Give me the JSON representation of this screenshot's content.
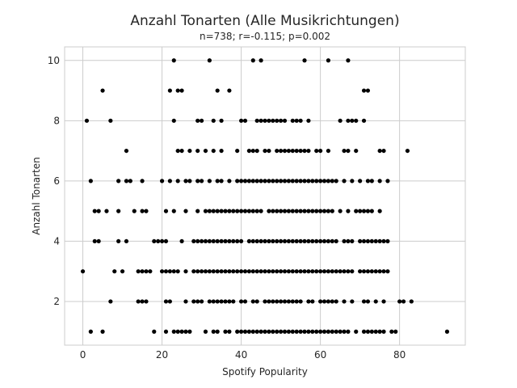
{
  "chart_data": {
    "type": "scatter",
    "title": "Anzahl Tonarten (Alle Musikrichtungen)",
    "subtitle": "n=738; r=-0.115; p=0.002",
    "xlabel": "Spotify Popularity",
    "ylabel": "Anzahl Tonarten",
    "xlim": [
      -4.6,
      96.6
    ],
    "ylim": [
      0.55,
      10.45
    ],
    "xticks": [
      0,
      20,
      40,
      60,
      80
    ],
    "yticks": [
      2,
      4,
      6,
      8,
      10
    ],
    "grid": true,
    "marker_color": "#000000",
    "points": [
      [
        23,
        10
      ],
      [
        32,
        10
      ],
      [
        43,
        10
      ],
      [
        45,
        10
      ],
      [
        56,
        10
      ],
      [
        62,
        10
      ],
      [
        67,
        10
      ],
      [
        5,
        9
      ],
      [
        22,
        9
      ],
      [
        24,
        9
      ],
      [
        25,
        9
      ],
      [
        34,
        9
      ],
      [
        37,
        9
      ],
      [
        71,
        9
      ],
      [
        72,
        9
      ],
      [
        1,
        8
      ],
      [
        7,
        8
      ],
      [
        23,
        8
      ],
      [
        29,
        8
      ],
      [
        30,
        8
      ],
      [
        33,
        8
      ],
      [
        35,
        8
      ],
      [
        40,
        8
      ],
      [
        41,
        8
      ],
      [
        44,
        8
      ],
      [
        45,
        8
      ],
      [
        46,
        8
      ],
      [
        47,
        8
      ],
      [
        48,
        8
      ],
      [
        49,
        8
      ],
      [
        50,
        8
      ],
      [
        51,
        8
      ],
      [
        53,
        8
      ],
      [
        54,
        8
      ],
      [
        55,
        8
      ],
      [
        57,
        8
      ],
      [
        65,
        8
      ],
      [
        67,
        8
      ],
      [
        68,
        8
      ],
      [
        69,
        8
      ],
      [
        71,
        8
      ],
      [
        11,
        7
      ],
      [
        24,
        7
      ],
      [
        25,
        7
      ],
      [
        27,
        7
      ],
      [
        29,
        7
      ],
      [
        31,
        7
      ],
      [
        33,
        7
      ],
      [
        35,
        7
      ],
      [
        39,
        7
      ],
      [
        42,
        7
      ],
      [
        43,
        7
      ],
      [
        44,
        7
      ],
      [
        46,
        7
      ],
      [
        47,
        7
      ],
      [
        49,
        7
      ],
      [
        50,
        7
      ],
      [
        51,
        7
      ],
      [
        52,
        7
      ],
      [
        53,
        7
      ],
      [
        54,
        7
      ],
      [
        55,
        7
      ],
      [
        56,
        7
      ],
      [
        57,
        7
      ],
      [
        59,
        7
      ],
      [
        60,
        7
      ],
      [
        62,
        7
      ],
      [
        66,
        7
      ],
      [
        67,
        7
      ],
      [
        69,
        7
      ],
      [
        75,
        7
      ],
      [
        76,
        7
      ],
      [
        82,
        7
      ],
      [
        2,
        6
      ],
      [
        9,
        6
      ],
      [
        11,
        6
      ],
      [
        12,
        6
      ],
      [
        15,
        6
      ],
      [
        20,
        6
      ],
      [
        22,
        6
      ],
      [
        24,
        6
      ],
      [
        26,
        6
      ],
      [
        27,
        6
      ],
      [
        29,
        6
      ],
      [
        30,
        6
      ],
      [
        32,
        6
      ],
      [
        34,
        6
      ],
      [
        35,
        6
      ],
      [
        37,
        6
      ],
      [
        39,
        6
      ],
      [
        40,
        6
      ],
      [
        41,
        6
      ],
      [
        42,
        6
      ],
      [
        43,
        6
      ],
      [
        44,
        6
      ],
      [
        45,
        6
      ],
      [
        46,
        6
      ],
      [
        47,
        6
      ],
      [
        48,
        6
      ],
      [
        49,
        6
      ],
      [
        50,
        6
      ],
      [
        51,
        6
      ],
      [
        52,
        6
      ],
      [
        53,
        6
      ],
      [
        54,
        6
      ],
      [
        55,
        6
      ],
      [
        56,
        6
      ],
      [
        57,
        6
      ],
      [
        58,
        6
      ],
      [
        59,
        6
      ],
      [
        60,
        6
      ],
      [
        61,
        6
      ],
      [
        62,
        6
      ],
      [
        63,
        6
      ],
      [
        64,
        6
      ],
      [
        66,
        6
      ],
      [
        68,
        6
      ],
      [
        70,
        6
      ],
      [
        72,
        6
      ],
      [
        73,
        6
      ],
      [
        75,
        6
      ],
      [
        77,
        6
      ],
      [
        3,
        5
      ],
      [
        4,
        5
      ],
      [
        6,
        5
      ],
      [
        9,
        5
      ],
      [
        13,
        5
      ],
      [
        15,
        5
      ],
      [
        16,
        5
      ],
      [
        21,
        5
      ],
      [
        23,
        5
      ],
      [
        26,
        5
      ],
      [
        29,
        5
      ],
      [
        31,
        5
      ],
      [
        32,
        5
      ],
      [
        33,
        5
      ],
      [
        34,
        5
      ],
      [
        35,
        5
      ],
      [
        36,
        5
      ],
      [
        37,
        5
      ],
      [
        38,
        5
      ],
      [
        39,
        5
      ],
      [
        40,
        5
      ],
      [
        41,
        5
      ],
      [
        42,
        5
      ],
      [
        43,
        5
      ],
      [
        44,
        5
      ],
      [
        45,
        5
      ],
      [
        47,
        5
      ],
      [
        48,
        5
      ],
      [
        49,
        5
      ],
      [
        50,
        5
      ],
      [
        51,
        5
      ],
      [
        52,
        5
      ],
      [
        53,
        5
      ],
      [
        54,
        5
      ],
      [
        55,
        5
      ],
      [
        56,
        5
      ],
      [
        57,
        5
      ],
      [
        58,
        5
      ],
      [
        59,
        5
      ],
      [
        60,
        5
      ],
      [
        61,
        5
      ],
      [
        62,
        5
      ],
      [
        63,
        5
      ],
      [
        65,
        5
      ],
      [
        67,
        5
      ],
      [
        69,
        5
      ],
      [
        70,
        5
      ],
      [
        71,
        5
      ],
      [
        72,
        5
      ],
      [
        73,
        5
      ],
      [
        75,
        5
      ],
      [
        3,
        4
      ],
      [
        4,
        4
      ],
      [
        9,
        4
      ],
      [
        11,
        4
      ],
      [
        18,
        4
      ],
      [
        19,
        4
      ],
      [
        20,
        4
      ],
      [
        21,
        4
      ],
      [
        25,
        4
      ],
      [
        28,
        4
      ],
      [
        29,
        4
      ],
      [
        30,
        4
      ],
      [
        31,
        4
      ],
      [
        32,
        4
      ],
      [
        33,
        4
      ],
      [
        34,
        4
      ],
      [
        35,
        4
      ],
      [
        36,
        4
      ],
      [
        37,
        4
      ],
      [
        38,
        4
      ],
      [
        39,
        4
      ],
      [
        40,
        4
      ],
      [
        42,
        4
      ],
      [
        43,
        4
      ],
      [
        44,
        4
      ],
      [
        45,
        4
      ],
      [
        46,
        4
      ],
      [
        47,
        4
      ],
      [
        48,
        4
      ],
      [
        49,
        4
      ],
      [
        50,
        4
      ],
      [
        51,
        4
      ],
      [
        52,
        4
      ],
      [
        53,
        4
      ],
      [
        54,
        4
      ],
      [
        55,
        4
      ],
      [
        56,
        4
      ],
      [
        57,
        4
      ],
      [
        58,
        4
      ],
      [
        59,
        4
      ],
      [
        60,
        4
      ],
      [
        61,
        4
      ],
      [
        62,
        4
      ],
      [
        63,
        4
      ],
      [
        64,
        4
      ],
      [
        66,
        4
      ],
      [
        67,
        4
      ],
      [
        68,
        4
      ],
      [
        70,
        4
      ],
      [
        71,
        4
      ],
      [
        72,
        4
      ],
      [
        73,
        4
      ],
      [
        74,
        4
      ],
      [
        75,
        4
      ],
      [
        76,
        4
      ],
      [
        77,
        4
      ],
      [
        0,
        3
      ],
      [
        8,
        3
      ],
      [
        10,
        3
      ],
      [
        14,
        3
      ],
      [
        15,
        3
      ],
      [
        16,
        3
      ],
      [
        17,
        3
      ],
      [
        20,
        3
      ],
      [
        21,
        3
      ],
      [
        22,
        3
      ],
      [
        23,
        3
      ],
      [
        24,
        3
      ],
      [
        26,
        3
      ],
      [
        28,
        3
      ],
      [
        29,
        3
      ],
      [
        30,
        3
      ],
      [
        31,
        3
      ],
      [
        32,
        3
      ],
      [
        33,
        3
      ],
      [
        34,
        3
      ],
      [
        35,
        3
      ],
      [
        36,
        3
      ],
      [
        37,
        3
      ],
      [
        38,
        3
      ],
      [
        39,
        3
      ],
      [
        40,
        3
      ],
      [
        41,
        3
      ],
      [
        42,
        3
      ],
      [
        43,
        3
      ],
      [
        44,
        3
      ],
      [
        45,
        3
      ],
      [
        46,
        3
      ],
      [
        47,
        3
      ],
      [
        48,
        3
      ],
      [
        49,
        3
      ],
      [
        50,
        3
      ],
      [
        51,
        3
      ],
      [
        52,
        3
      ],
      [
        53,
        3
      ],
      [
        54,
        3
      ],
      [
        55,
        3
      ],
      [
        56,
        3
      ],
      [
        57,
        3
      ],
      [
        58,
        3
      ],
      [
        59,
        3
      ],
      [
        60,
        3
      ],
      [
        61,
        3
      ],
      [
        62,
        3
      ],
      [
        63,
        3
      ],
      [
        64,
        3
      ],
      [
        65,
        3
      ],
      [
        66,
        3
      ],
      [
        67,
        3
      ],
      [
        68,
        3
      ],
      [
        70,
        3
      ],
      [
        71,
        3
      ],
      [
        72,
        3
      ],
      [
        73,
        3
      ],
      [
        74,
        3
      ],
      [
        75,
        3
      ],
      [
        76,
        3
      ],
      [
        77,
        3
      ],
      [
        7,
        2
      ],
      [
        14,
        2
      ],
      [
        15,
        2
      ],
      [
        16,
        2
      ],
      [
        21,
        2
      ],
      [
        22,
        2
      ],
      [
        26,
        2
      ],
      [
        28,
        2
      ],
      [
        29,
        2
      ],
      [
        30,
        2
      ],
      [
        32,
        2
      ],
      [
        33,
        2
      ],
      [
        34,
        2
      ],
      [
        35,
        2
      ],
      [
        36,
        2
      ],
      [
        37,
        2
      ],
      [
        38,
        2
      ],
      [
        40,
        2
      ],
      [
        41,
        2
      ],
      [
        43,
        2
      ],
      [
        44,
        2
      ],
      [
        46,
        2
      ],
      [
        47,
        2
      ],
      [
        48,
        2
      ],
      [
        49,
        2
      ],
      [
        50,
        2
      ],
      [
        51,
        2
      ],
      [
        52,
        2
      ],
      [
        53,
        2
      ],
      [
        54,
        2
      ],
      [
        55,
        2
      ],
      [
        57,
        2
      ],
      [
        58,
        2
      ],
      [
        60,
        2
      ],
      [
        61,
        2
      ],
      [
        62,
        2
      ],
      [
        63,
        2
      ],
      [
        64,
        2
      ],
      [
        66,
        2
      ],
      [
        68,
        2
      ],
      [
        71,
        2
      ],
      [
        72,
        2
      ],
      [
        74,
        2
      ],
      [
        76,
        2
      ],
      [
        80,
        2
      ],
      [
        81,
        2
      ],
      [
        83,
        2
      ],
      [
        2,
        1
      ],
      [
        5,
        1
      ],
      [
        18,
        1
      ],
      [
        21,
        1
      ],
      [
        23,
        1
      ],
      [
        24,
        1
      ],
      [
        25,
        1
      ],
      [
        26,
        1
      ],
      [
        27,
        1
      ],
      [
        31,
        1
      ],
      [
        33,
        1
      ],
      [
        34,
        1
      ],
      [
        36,
        1
      ],
      [
        37,
        1
      ],
      [
        39,
        1
      ],
      [
        40,
        1
      ],
      [
        41,
        1
      ],
      [
        42,
        1
      ],
      [
        43,
        1
      ],
      [
        44,
        1
      ],
      [
        45,
        1
      ],
      [
        46,
        1
      ],
      [
        47,
        1
      ],
      [
        48,
        1
      ],
      [
        49,
        1
      ],
      [
        50,
        1
      ],
      [
        51,
        1
      ],
      [
        52,
        1
      ],
      [
        53,
        1
      ],
      [
        54,
        1
      ],
      [
        55,
        1
      ],
      [
        56,
        1
      ],
      [
        57,
        1
      ],
      [
        58,
        1
      ],
      [
        59,
        1
      ],
      [
        60,
        1
      ],
      [
        61,
        1
      ],
      [
        62,
        1
      ],
      [
        63,
        1
      ],
      [
        64,
        1
      ],
      [
        65,
        1
      ],
      [
        66,
        1
      ],
      [
        67,
        1
      ],
      [
        69,
        1
      ],
      [
        71,
        1
      ],
      [
        72,
        1
      ],
      [
        73,
        1
      ],
      [
        74,
        1
      ],
      [
        75,
        1
      ],
      [
        76,
        1
      ],
      [
        78,
        1
      ],
      [
        79,
        1
      ],
      [
        92,
        1
      ]
    ]
  }
}
